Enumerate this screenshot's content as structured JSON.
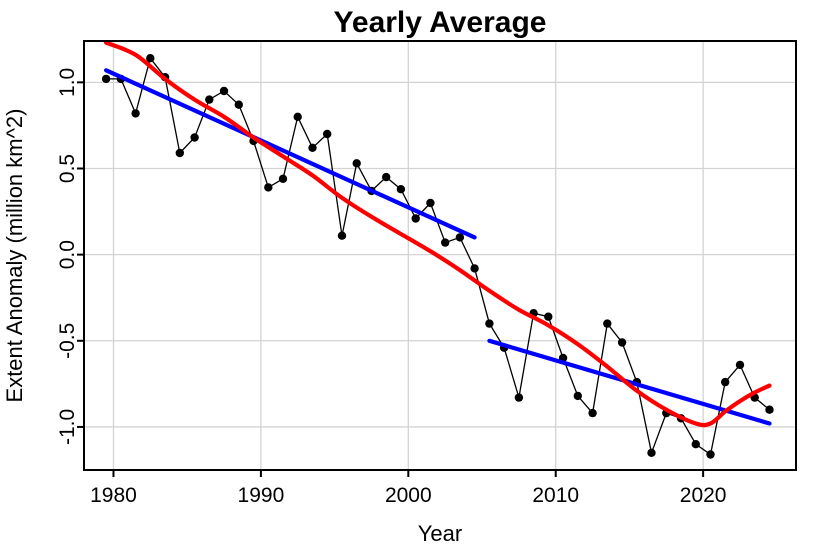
{
  "chart_data": {
    "type": "line",
    "title": "Yearly Average",
    "xlabel": "Year",
    "ylabel": "Extent Anomaly (million km^2)",
    "x_offset": 0.5,
    "xlim": [
      1978.0,
      2026.3
    ],
    "ylim": [
      -1.25,
      1.24
    ],
    "grid": true,
    "legend": "none",
    "x_ticks": [
      "1980",
      "1990",
      "2000",
      "2010",
      "2020"
    ],
    "y_ticks": [
      "1.0",
      "0.5",
      "0.0",
      "-0.5",
      "-1.0"
    ],
    "colors": {
      "points": "#000000",
      "trend_lines": "#0000FF",
      "smooth_curve": "#FF0000",
      "gridlines": "#D3D3D3",
      "frame": "#000000"
    },
    "series": [
      {
        "name": "yearly-average-anomaly",
        "style": "marker-line",
        "marker": "filled-circle",
        "color": "#000000",
        "x": [
          1979,
          1980,
          1981,
          1982,
          1983,
          1984,
          1985,
          1986,
          1987,
          1988,
          1989,
          1990,
          1991,
          1992,
          1993,
          1994,
          1995,
          1996,
          1997,
          1998,
          1999,
          2000,
          2001,
          2002,
          2003,
          2004,
          2005,
          2006,
          2007,
          2008,
          2009,
          2010,
          2011,
          2012,
          2013,
          2014,
          2015,
          2016,
          2017,
          2018,
          2019,
          2020,
          2021,
          2022,
          2023,
          2024
        ],
        "y": [
          1.02,
          1.02,
          0.82,
          1.14,
          1.03,
          0.59,
          0.68,
          0.9,
          0.95,
          0.87,
          0.66,
          0.39,
          0.44,
          0.8,
          0.62,
          0.7,
          0.11,
          0.53,
          0.37,
          0.45,
          0.38,
          0.21,
          0.3,
          0.07,
          0.1,
          -0.08,
          -0.4,
          -0.54,
          -0.83,
          -0.34,
          -0.36,
          -0.6,
          -0.82,
          -0.92,
          -0.4,
          -0.51,
          -0.74,
          -1.15,
          -0.92,
          -0.95,
          -1.1,
          -1.16,
          -0.74,
          -0.64,
          -0.83,
          -0.9
        ]
      },
      {
        "name": "linear-trend-1979-2004",
        "style": "straight",
        "color": "#0000FF",
        "x": [
          1979,
          2004
        ],
        "y": [
          1.07,
          0.1
        ]
      },
      {
        "name": "linear-trend-2005-2024",
        "style": "straight",
        "color": "#0000FF",
        "x": [
          2005,
          2024
        ],
        "y": [
          -0.5,
          -0.98
        ]
      },
      {
        "name": "smooth-fit",
        "style": "smooth",
        "color": "#FF0000",
        "x": [
          1979,
          1981,
          1983,
          1985,
          1987,
          1989,
          1991,
          1993,
          1995,
          1997,
          1999,
          2001,
          2003,
          2005,
          2007,
          2009,
          2011,
          2013,
          2015,
          2017,
          2019,
          2020,
          2021,
          2022,
          2023,
          2024
        ],
        "y": [
          1.23,
          1.16,
          1.02,
          0.9,
          0.8,
          0.68,
          0.57,
          0.46,
          0.33,
          0.22,
          0.12,
          0.02,
          -0.09,
          -0.21,
          -0.32,
          -0.41,
          -0.52,
          -0.65,
          -0.79,
          -0.9,
          -0.98,
          -0.98,
          -0.91,
          -0.85,
          -0.8,
          -0.76
        ]
      }
    ]
  }
}
